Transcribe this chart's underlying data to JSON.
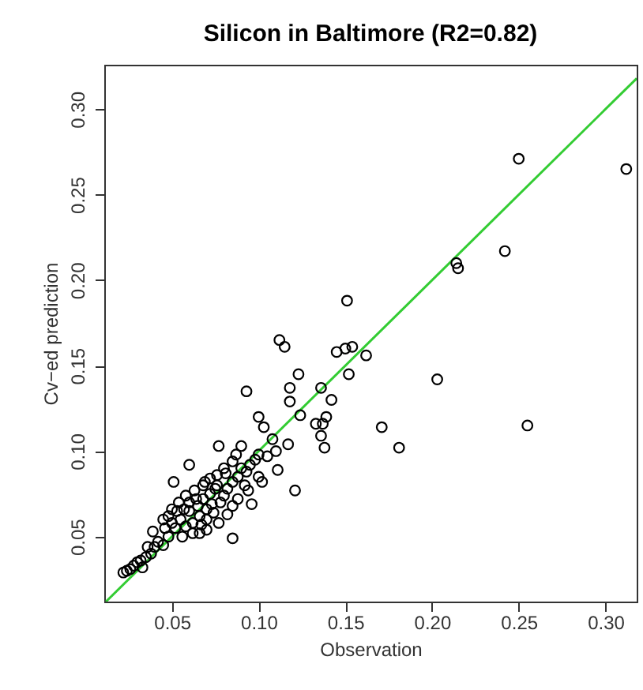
{
  "chart_data": {
    "type": "scatter",
    "title": "Silicon in Baltimore (R2=0.82)",
    "xlabel": "Observation",
    "ylabel": "Cv−ed prediction",
    "xlim": [
      0.011,
      0.318
    ],
    "ylim": [
      0.012,
      0.326
    ],
    "xticks": [
      0.05,
      {
        "value": 0.1,
        "label": "0.10"
      },
      0.15,
      {
        "value": 0.2,
        "label": "0.20"
      },
      0.25,
      {
        "value": 0.3,
        "label": "0.30"
      }
    ],
    "yticks": [
      0.05,
      {
        "value": 0.1,
        "label": "0.10"
      },
      0.15,
      {
        "value": 0.2,
        "label": "0.20"
      },
      0.25,
      {
        "value": 0.3,
        "label": "0.30"
      }
    ],
    "grid": false,
    "marker": "circle",
    "series": [
      {
        "type": "line",
        "color": "#33cc33",
        "line_style": "solid",
        "marker": "none",
        "x": [
          0.012,
          0.318
        ],
        "values": [
          0.012,
          0.318
        ]
      },
      {
        "type": "scatter",
        "color": "#000000",
        "x": [
          0.25,
          0.312,
          0.242,
          0.214,
          0.215,
          0.151,
          0.112,
          0.115,
          0.145,
          0.15,
          0.154,
          0.162,
          0.123,
          0.152,
          0.203,
          0.255,
          0.171,
          0.181,
          0.138,
          0.137,
          0.142,
          0.093,
          0.118,
          0.136,
          0.118,
          0.124,
          0.139,
          0.133,
          0.136,
          0.1,
          0.103,
          0.108,
          0.117,
          0.111,
          0.121,
          0.102,
          0.094,
          0.096,
          0.077,
          0.06,
          0.051,
          0.085,
          0.077,
          0.09,
          0.085,
          0.087,
          0.081,
          0.076,
          0.069,
          0.054,
          0.048,
          0.039,
          0.045,
          0.035,
          0.024,
          0.028,
          0.033,
          0.022,
          0.055,
          0.058,
          0.06,
          0.062,
          0.065,
          0.066,
          0.068,
          0.07,
          0.072,
          0.073,
          0.075,
          0.064,
          0.06,
          0.057,
          0.052,
          0.05,
          0.048,
          0.046,
          0.042,
          0.04,
          0.056,
          0.062,
          0.067,
          0.07,
          0.074,
          0.078,
          0.08,
          0.082,
          0.085,
          0.088,
          0.09,
          0.093,
          0.095,
          0.098,
          0.08,
          0.076,
          0.072,
          0.068,
          0.063,
          0.058,
          0.053,
          0.05,
          0.045,
          0.038,
          0.036,
          0.032,
          0.03,
          0.026,
          0.07,
          0.066,
          0.082,
          0.085,
          0.1,
          0.105,
          0.11,
          0.1,
          0.092,
          0.088
        ],
        "values": [
          0.271,
          0.265,
          0.217,
          0.21,
          0.207,
          0.188,
          0.165,
          0.161,
          0.158,
          0.16,
          0.161,
          0.156,
          0.145,
          0.145,
          0.142,
          0.115,
          0.114,
          0.102,
          0.102,
          0.116,
          0.13,
          0.135,
          0.137,
          0.137,
          0.129,
          0.121,
          0.12,
          0.116,
          0.109,
          0.12,
          0.114,
          0.107,
          0.104,
          0.089,
          0.077,
          0.082,
          0.077,
          0.069,
          0.103,
          0.092,
          0.082,
          0.049,
          0.058,
          0.103,
          0.094,
          0.098,
          0.087,
          0.08,
          0.082,
          0.07,
          0.062,
          0.053,
          0.045,
          0.038,
          0.03,
          0.033,
          0.032,
          0.029,
          0.06,
          0.056,
          0.065,
          0.058,
          0.068,
          0.062,
          0.072,
          0.066,
          0.075,
          0.069,
          0.078,
          0.072,
          0.07,
          0.066,
          0.055,
          0.058,
          0.05,
          0.055,
          0.047,
          0.044,
          0.05,
          0.052,
          0.057,
          0.06,
          0.064,
          0.07,
          0.074,
          0.078,
          0.082,
          0.085,
          0.09,
          0.088,
          0.092,
          0.095,
          0.09,
          0.086,
          0.084,
          0.08,
          0.077,
          0.074,
          0.065,
          0.066,
          0.06,
          0.04,
          0.044,
          0.036,
          0.035,
          0.031,
          0.054,
          0.052,
          0.063,
          0.068,
          0.085,
          0.097,
          0.1,
          0.098,
          0.08,
          0.072
        ]
      }
    ]
  }
}
